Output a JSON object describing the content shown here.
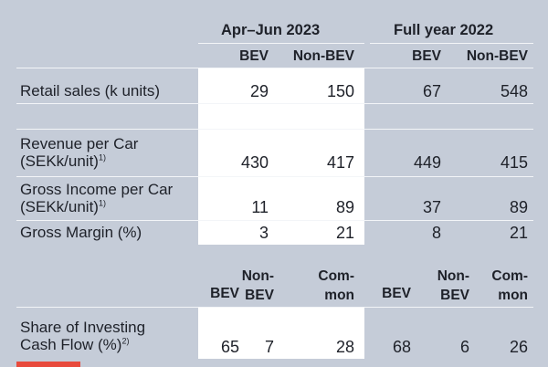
{
  "top_table": {
    "group_headers": [
      "Apr–Jun 2023",
      "Full year 2022"
    ],
    "column_headers": [
      "BEV",
      "Non-BEV",
      "BEV",
      "Non-BEV"
    ],
    "rows": [
      {
        "label_lines": [
          "Retail sales (k units)"
        ],
        "values": [
          "29",
          "150",
          "67",
          "548"
        ]
      },
      {
        "label_lines": [
          "Revenue per Car",
          "(SEKk/unit)"
        ],
        "footnote": "1)",
        "values": [
          "430",
          "417",
          "449",
          "415"
        ]
      },
      {
        "label_lines": [
          "Gross Income per Car",
          "(SEKk/unit)"
        ],
        "footnote": "1)",
        "values": [
          "11",
          "89",
          "37",
          "89"
        ]
      },
      {
        "label_lines": [
          "Gross Margin (%)"
        ],
        "values": [
          "3",
          "21",
          "8",
          "21"
        ]
      }
    ]
  },
  "bottom_table": {
    "column_headers": [
      [
        "BEV"
      ],
      [
        "Non-",
        "BEV"
      ],
      [
        "Com-",
        "mon"
      ],
      [
        "BEV"
      ],
      [
        "Non-",
        "BEV"
      ],
      [
        "Com-",
        "mon"
      ]
    ],
    "rows": [
      {
        "label_lines": [
          "Share of Investing",
          "Cash Flow (%)"
        ],
        "footnote": "2)",
        "values": [
          "65",
          "7",
          "28",
          "68",
          "6",
          "26"
        ]
      }
    ]
  },
  "colors": {
    "background": "#c5ccd8",
    "highlight": "#ffffff",
    "text": "#1e2129",
    "accent": "#e84a3c"
  }
}
